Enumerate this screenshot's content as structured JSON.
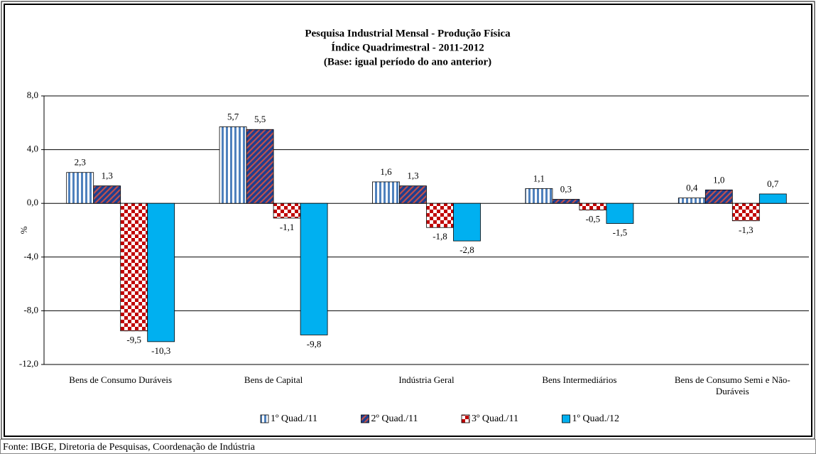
{
  "chart_data": {
    "type": "bar",
    "title": [
      "Pesquisa Industrial Mensal - Produção Física",
      "Índice Quadrimestral - 2011-2012",
      "(Base: igual período do ano anterior)"
    ],
    "ylabel": "%",
    "categories": [
      "Bens de Consumo Duráveis",
      "Bens de Capital",
      "Indústria Geral",
      "Bens Intermediários",
      "Bens de Consumo Semi e Não-Duráveis"
    ],
    "series": [
      {
        "name": "1º Quad./11",
        "color": "#4f81bd",
        "pattern": "vertical-stripes",
        "values": [
          2.3,
          5.7,
          1.6,
          1.1,
          0.4
        ],
        "value_labels": [
          "2,3",
          "5,7",
          "1,6",
          "1,1",
          "0,4"
        ]
      },
      {
        "name": "2º Quad./11",
        "color": "#1f3f8f",
        "pattern": "diagonal-stripes",
        "values": [
          1.3,
          5.5,
          1.3,
          0.3,
          1.0
        ],
        "value_labels": [
          "1,3",
          "5,5",
          "1,3",
          "0,3",
          "1,0"
        ]
      },
      {
        "name": "3º Quad./11",
        "color": "#c00000",
        "pattern": "checker",
        "values": [
          -9.5,
          -1.1,
          -1.8,
          -0.5,
          -1.3
        ],
        "value_labels": [
          "-9,5",
          "-1,1",
          "-1,8",
          "-0,5",
          "-1,3"
        ]
      },
      {
        "name": "1º Quad./12",
        "color": "#00b0f0",
        "pattern": "solid",
        "values": [
          -10.3,
          -9.8,
          -2.8,
          -1.5,
          0.7
        ],
        "value_labels": [
          "-10,3",
          "-9,8",
          "-2,8",
          "-1,5",
          "0,7"
        ]
      }
    ],
    "ylim": [
      -12,
      8
    ],
    "yticks": [
      {
        "value": -12,
        "label": "-12,0"
      },
      {
        "value": -8,
        "label": "-8,0"
      },
      {
        "value": -4,
        "label": "-4,0"
      },
      {
        "value": 0,
        "label": "0,0"
      },
      {
        "value": 4,
        "label": "4,0"
      },
      {
        "value": 8,
        "label": "8,0"
      }
    ],
    "grid": true,
    "legend": "bottom",
    "source": "Fonte: IBGE, Diretoria de Pesquisas, Coordenação de Indústria"
  }
}
